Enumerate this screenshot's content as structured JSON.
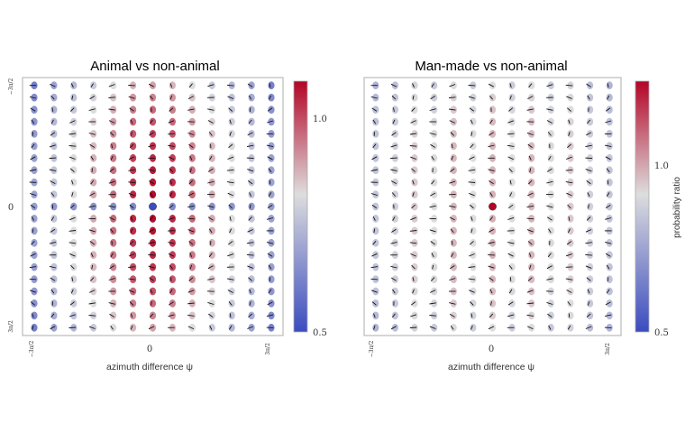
{
  "chart_data": [
    {
      "type": "heatmap",
      "title": "Animal vs non-animal",
      "xlabel": "azimuth difference ψ",
      "ylabel": "",
      "x_ticks": [
        "−3π/2",
        "0",
        "3π/2"
      ],
      "y_ticks": [
        "−3π/2",
        "0",
        "3π/2"
      ],
      "grid_size": [
        13,
        21
      ],
      "colorbar": {
        "ticks": [
          "1.0",
          "0.5"
        ],
        "label": "",
        "range": [
          0.5,
          1.35
        ],
        "colormap": "coolwarm"
      },
      "description": "Each grid cell shows a small colored marker (probability ratio) and a short orientation tick.",
      "center_value": 0.5,
      "center_row_value": 0.72,
      "peak_value": 1.3
    },
    {
      "type": "heatmap",
      "title": "Man-made vs non-animal",
      "xlabel": "azimuth difference ψ",
      "ylabel": "",
      "x_ticks": [
        "−3π/2",
        "0",
        "3π/2"
      ],
      "y_ticks": [],
      "grid_size": [
        13,
        21
      ],
      "colorbar": {
        "ticks": [
          "1.0",
          "0.5"
        ],
        "label": "probability ratio",
        "range": [
          0.5,
          1.35
        ],
        "colormap": "coolwarm"
      },
      "center_value": 1.3,
      "peak_value": 1.3
    }
  ],
  "labels": {
    "left_title": "Animal vs non-animal",
    "right_title": "Man-made vs non-animal",
    "xlabel_left": "azimuth difference ψ",
    "xlabel_right": "azimuth difference ψ",
    "y_zero": "0",
    "x_zero_left": "0",
    "x_zero_right": "0",
    "tick_neg": "−3π/2",
    "tick_pos": "3π/2",
    "cb_left_top": "1.0",
    "cb_left_bottom": "0.5",
    "cb_right_top": "1.0",
    "cb_right_bottom": "0.5",
    "cb_right_label": "probability ratio"
  }
}
